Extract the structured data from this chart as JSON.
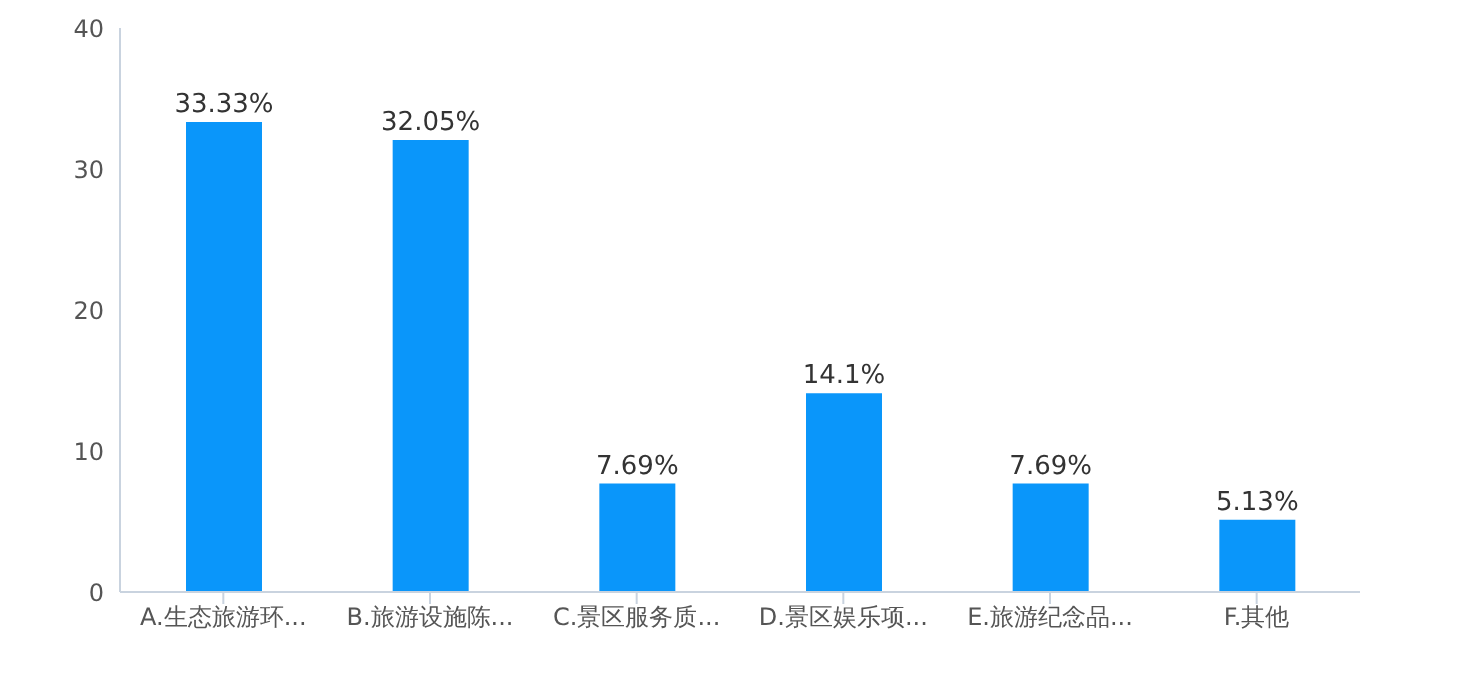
{
  "chart_data": {
    "type": "bar",
    "categories": [
      "A.生态旅游环...",
      "B.旅游设施陈...",
      "C.景区服务质...",
      "D.景区娱乐项...",
      "E.旅游纪念品...",
      "F.其他"
    ],
    "values": [
      33.33,
      32.05,
      7.69,
      14.1,
      7.69,
      5.13
    ],
    "value_labels": [
      "33.33%",
      "32.05%",
      "7.69%",
      "14.1%",
      "7.69%",
      "5.13%"
    ],
    "color": "#0a96fa",
    "ylim": [
      0,
      40
    ],
    "yticks": [
      0,
      10,
      20,
      30,
      40
    ],
    "grid": false
  }
}
